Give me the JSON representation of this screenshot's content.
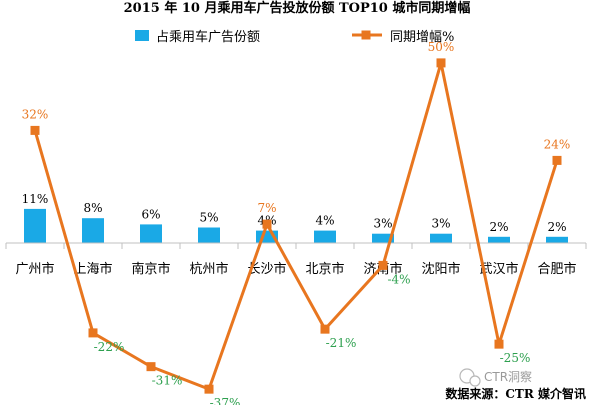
{
  "chart_data": {
    "type": "bar+line",
    "title": "2015 年 10 月乘用车广告投放份额 TOP10 城市同期增幅",
    "categories": [
      "广州市",
      "上海市",
      "南京市",
      "杭州市",
      "长沙市",
      "北京市",
      "济南市",
      "沈阳市",
      "武汉市",
      "合肥市"
    ],
    "series": [
      {
        "name": "占乘用车广告份额",
        "type": "bar",
        "values": [
          11,
          8,
          6,
          5,
          4,
          4,
          3,
          3,
          2,
          2
        ],
        "labels": [
          "11%",
          "8%",
          "6%",
          "5%",
          "4%",
          "4%",
          "3%",
          "3%",
          "2%",
          "2%"
        ],
        "color": "#1aa9e6"
      },
      {
        "name": "同期增幅%",
        "type": "line",
        "values": [
          32,
          -22,
          -31,
          -37,
          7,
          -21,
          -4,
          50,
          -25,
          24
        ],
        "labels": [
          "32%",
          "-22%",
          "-31%",
          "-37%",
          "7%",
          "-21%",
          "-4%",
          "50%",
          "-25%",
          "24%"
        ],
        "color": "#e8761f",
        "positive_label_color": "#e8761f",
        "negative_label_color": "#2ea04f"
      }
    ],
    "legend_position": "top",
    "grid": false
  },
  "source": "数据来源：CTR 媒介智讯",
  "watermark": "CTR洞察"
}
